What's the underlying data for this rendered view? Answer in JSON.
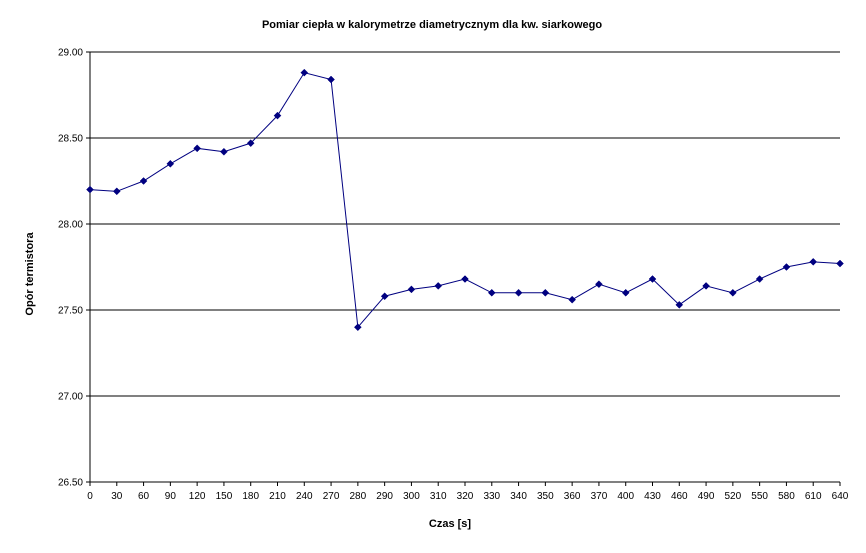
{
  "chart_data": {
    "type": "line",
    "title": "Pomiar ciepła w kalorymetrze diametrycznym dla kw. siarkowego",
    "xlabel": "Czas [s]",
    "ylabel": "Opór termistora",
    "ylim": [
      26.5,
      29.0
    ],
    "yticks": [
      "26.50",
      "27.00",
      "27.50",
      "28.00",
      "28.50",
      "29.00"
    ],
    "grid": true,
    "legend": "none",
    "categories": [
      "0",
      "30",
      "60",
      "90",
      "120",
      "150",
      "180",
      "210",
      "240",
      "270",
      "280",
      "290",
      "300",
      "310",
      "320",
      "330",
      "340",
      "350",
      "360",
      "370",
      "400",
      "430",
      "460",
      "490",
      "520",
      "550",
      "580",
      "610",
      "640"
    ],
    "series": [
      {
        "values": [
          28.2,
          28.19,
          28.25,
          28.35,
          28.44,
          28.42,
          28.47,
          28.63,
          28.88,
          28.84,
          27.4,
          27.58,
          27.62,
          27.64,
          27.68,
          27.6,
          27.6,
          27.6,
          27.56,
          27.65,
          27.6,
          27.68,
          27.53,
          27.64,
          27.6,
          27.68,
          27.75,
          27.78,
          27.77
        ],
        "color": "#000080"
      }
    ]
  }
}
